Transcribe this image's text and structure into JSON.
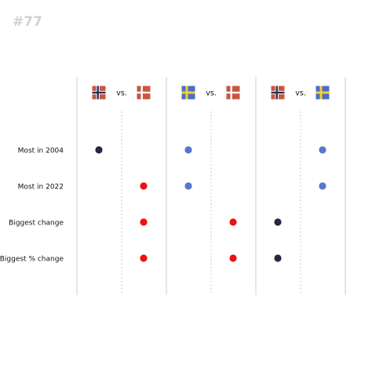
{
  "badge": "#77",
  "colors": {
    "norway": "#222845",
    "sweden": "#5577cc",
    "denmark": "#ee1111",
    "separator": "#cccccc",
    "midline": "#bbbbbb"
  },
  "chart_data": {
    "type": "scatter",
    "title": "",
    "grid": false,
    "rows": [
      "Most in 2004",
      "Most in 2022",
      "Biggest change",
      "Biggest % change"
    ],
    "comparisons": [
      {
        "left": "Norway",
        "right": "Denmark",
        "separator": "vs.",
        "left_flag": "norway-flag-icon",
        "right_flag": "denmark-flag-icon",
        "winners": [
          "Norway",
          "Denmark",
          "Denmark",
          "Denmark"
        ]
      },
      {
        "left": "Sweden",
        "right": "Denmark",
        "separator": "vs.",
        "left_flag": "sweden-flag-icon",
        "right_flag": "denmark-flag-icon",
        "winners": [
          "Sweden",
          "Sweden",
          "Denmark",
          "Denmark"
        ]
      },
      {
        "left": "Norway",
        "right": "Sweden",
        "separator": "vs.",
        "left_flag": "norway-flag-icon",
        "right_flag": "sweden-flag-icon",
        "winners": [
          "Sweden",
          "Sweden",
          "Norway",
          "Norway"
        ]
      }
    ]
  }
}
